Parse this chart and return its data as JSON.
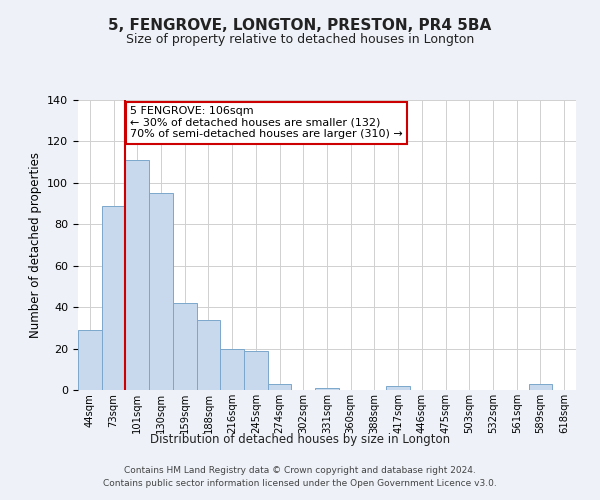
{
  "title": "5, FENGROVE, LONGTON, PRESTON, PR4 5BA",
  "subtitle": "Size of property relative to detached houses in Longton",
  "xlabel": "Distribution of detached houses by size in Longton",
  "ylabel": "Number of detached properties",
  "bin_labels": [
    "44sqm",
    "73sqm",
    "101sqm",
    "130sqm",
    "159sqm",
    "188sqm",
    "216sqm",
    "245sqm",
    "274sqm",
    "302sqm",
    "331sqm",
    "360sqm",
    "388sqm",
    "417sqm",
    "446sqm",
    "475sqm",
    "503sqm",
    "532sqm",
    "561sqm",
    "589sqm",
    "618sqm"
  ],
  "bar_heights": [
    29,
    89,
    111,
    95,
    42,
    34,
    20,
    19,
    3,
    0,
    1,
    0,
    0,
    2,
    0,
    0,
    0,
    0,
    0,
    3,
    0
  ],
  "bar_color": "#c9d9ed",
  "bar_edge_color": "#7ba7cc",
  "ylim": [
    0,
    140
  ],
  "yticks": [
    0,
    20,
    40,
    60,
    80,
    100,
    120,
    140
  ],
  "vline_bin_index": 2,
  "annotation_line1": "5 FENGROVE: 106sqm",
  "annotation_line2": "← 30% of detached houses are smaller (132)",
  "annotation_line3": "70% of semi-detached houses are larger (310) →",
  "annotation_box_color": "#ffffff",
  "annotation_box_edge_color": "#cc0000",
  "vline_color": "#cc0000",
  "footer_line1": "Contains HM Land Registry data © Crown copyright and database right 2024.",
  "footer_line2": "Contains public sector information licensed under the Open Government Licence v3.0.",
  "background_color": "#eef2f8",
  "plot_background": "#ffffff",
  "grid_color": "#d0d0d0"
}
